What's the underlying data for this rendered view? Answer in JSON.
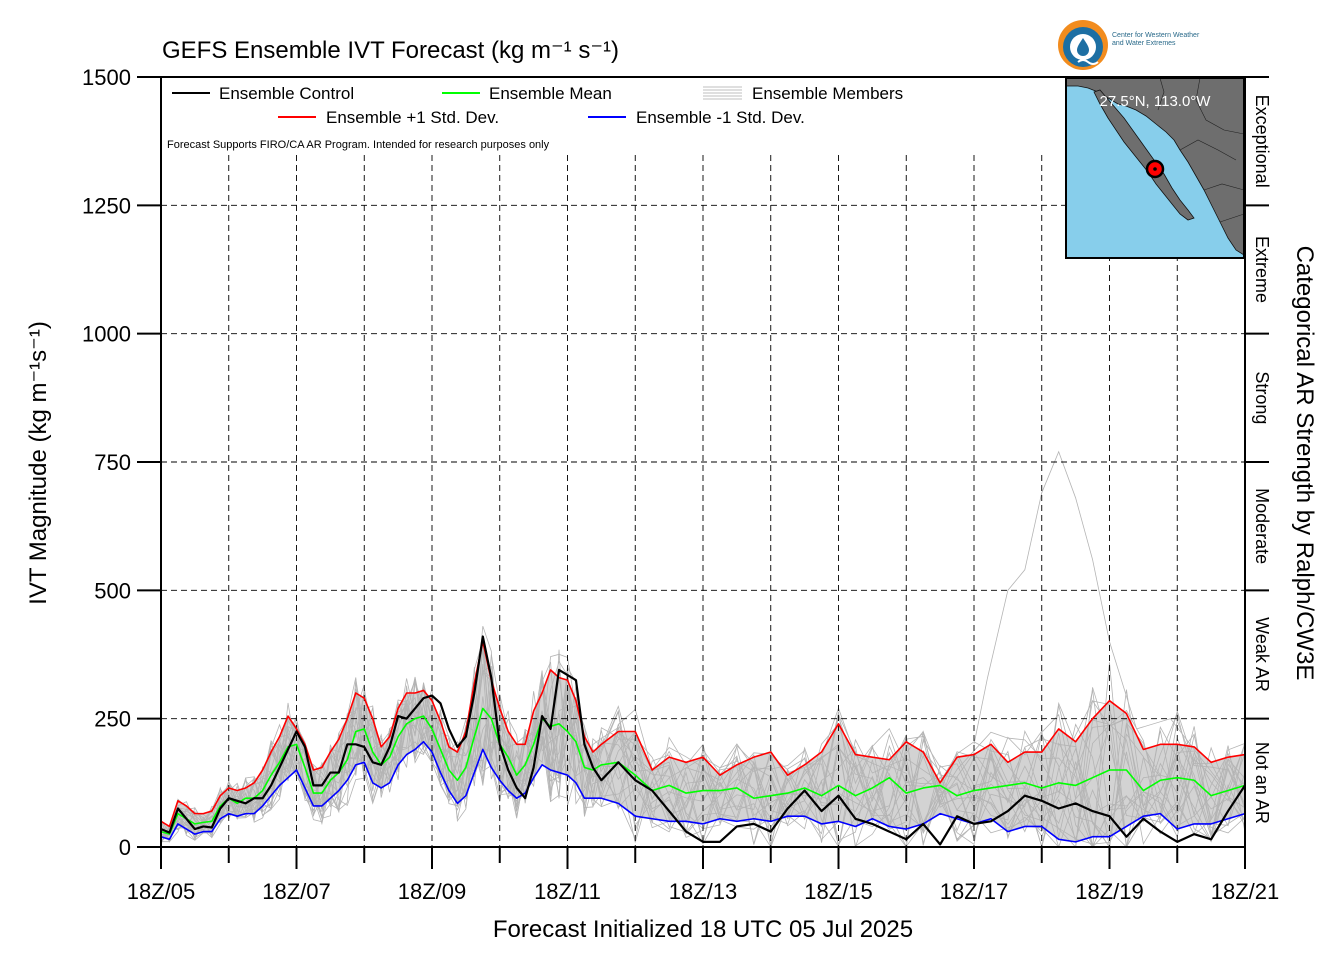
{
  "chart_data": {
    "type": "line",
    "title": "GEFS Ensemble IVT Forecast (kg m⁻¹ s⁻¹)",
    "xlabel": "Forecast Initialized 18 UTC 05 Jul 2025",
    "ylabel": "IVT Magnitude (kg m⁻¹s⁻¹)",
    "right_label": "Categorical AR Strength by Ralph/CW3E",
    "note": "Forecast Supports FIRO/CA AR Program. Intended for research purposes only",
    "ylim": [
      0,
      1500
    ],
    "xlim": [
      0,
      16
    ],
    "y_ticks": [
      0,
      250,
      500,
      750,
      1000,
      1250,
      1500
    ],
    "x_tick_labels": [
      "18Z/05",
      "18Z/07",
      "18Z/09",
      "18Z/11",
      "18Z/13",
      "18Z/15",
      "18Z/17",
      "18Z/19",
      "18Z/21"
    ],
    "grid": true,
    "categories_ar": [
      {
        "label": "Not an AR",
        "range": [
          0,
          250
        ]
      },
      {
        "label": "Weak AR",
        "range": [
          250,
          500
        ]
      },
      {
        "label": "Moderate",
        "range": [
          500,
          750
        ]
      },
      {
        "label": "Strong",
        "range": [
          750,
          1000
        ]
      },
      {
        "label": "Extreme",
        "range": [
          1000,
          1250
        ]
      },
      {
        "label": "Exceptional",
        "range": [
          1250,
          1500
        ]
      }
    ],
    "legend": {
      "placement": "top-left",
      "entries": [
        {
          "label": "Ensemble Control",
          "color": "#000000"
        },
        {
          "label": "Ensemble Mean",
          "color": "#00ff00"
        },
        {
          "label": "Ensemble Members",
          "color": "#aaaaaa"
        },
        {
          "label": "Ensemble +1 Std. Dev.",
          "color": "#ff0000"
        },
        {
          "label": "Ensemble -1 Std. Dev.",
          "color": "#0000ff"
        }
      ]
    },
    "inset_map": {
      "location_label": "27.5°N, 113.0°W",
      "ocean_color": "#87ceeb",
      "land_color": "#6e6e6e"
    },
    "series": [
      {
        "name": "Ensemble Control",
        "color": "#000000",
        "x": [
          0,
          0.125,
          0.25,
          0.375,
          0.5,
          0.625,
          0.75,
          0.875,
          1,
          1.125,
          1.25,
          1.375,
          1.5,
          1.625,
          1.75,
          1.875,
          2,
          2.125,
          2.25,
          2.375,
          2.5,
          2.625,
          2.75,
          2.875,
          3,
          3.125,
          3.25,
          3.375,
          3.5,
          3.625,
          3.75,
          3.875,
          4,
          4.125,
          4.25,
          4.375,
          4.5,
          4.625,
          4.75,
          4.875,
          5,
          5.125,
          5.25,
          5.375,
          5.5,
          5.625,
          5.75,
          5.875,
          6,
          6.125,
          6.25,
          6.375,
          6.5,
          6.75,
          7,
          7.25,
          7.5,
          7.75,
          8,
          8.25,
          8.5,
          8.75,
          9,
          9.25,
          9.5,
          9.75,
          10,
          10.25,
          10.5,
          10.75,
          11,
          11.25,
          11.5,
          11.75,
          12,
          12.25,
          12.5,
          12.75,
          13,
          13.25,
          13.5,
          13.75,
          14,
          14.25,
          14.5,
          14.75,
          15,
          15.25,
          15.5,
          15.75,
          16
        ],
        "y": [
          35,
          28,
          75,
          55,
          35,
          40,
          38,
          75,
          95,
          90,
          85,
          95,
          95,
          120,
          155,
          190,
          225,
          195,
          120,
          120,
          145,
          145,
          200,
          200,
          195,
          165,
          160,
          195,
          255,
          250,
          270,
          290,
          295,
          280,
          230,
          195,
          215,
          300,
          410,
          330,
          200,
          150,
          115,
          95,
          155,
          255,
          230,
          345,
          335,
          325,
          200,
          155,
          130,
          165,
          130,
          110,
          70,
          30,
          10,
          10,
          40,
          45,
          30,
          75,
          110,
          70,
          100,
          55,
          45,
          30,
          15,
          45,
          5,
          60,
          45,
          50,
          70,
          100,
          90,
          75,
          85,
          70,
          60,
          20,
          55,
          30,
          10,
          25,
          15,
          70,
          120
        ]
      },
      {
        "name": "Ensemble Mean",
        "color": "#00ff00",
        "x": [
          0,
          0.125,
          0.25,
          0.375,
          0.5,
          0.625,
          0.75,
          0.875,
          1,
          1.125,
          1.25,
          1.375,
          1.5,
          1.625,
          1.75,
          1.875,
          2,
          2.125,
          2.25,
          2.375,
          2.5,
          2.625,
          2.75,
          2.875,
          3,
          3.125,
          3.25,
          3.375,
          3.5,
          3.625,
          3.75,
          3.875,
          4,
          4.125,
          4.25,
          4.375,
          4.5,
          4.625,
          4.75,
          4.875,
          5,
          5.125,
          5.25,
          5.375,
          5.5,
          5.625,
          5.75,
          5.875,
          6,
          6.125,
          6.25,
          6.375,
          6.5,
          6.75,
          7,
          7.25,
          7.5,
          7.75,
          8,
          8.25,
          8.5,
          8.75,
          9,
          9.25,
          9.5,
          9.75,
          10,
          10.25,
          10.5,
          10.75,
          11,
          11.25,
          11.5,
          11.75,
          12,
          12.25,
          12.5,
          12.75,
          13,
          13.25,
          13.5,
          13.75,
          14,
          14.25,
          14.5,
          14.75,
          15,
          15.25,
          15.5,
          15.75,
          16
        ],
        "y": [
          30,
          25,
          65,
          55,
          45,
          48,
          50,
          80,
          95,
          85,
          95,
          95,
          110,
          140,
          165,
          195,
          200,
          155,
          105,
          105,
          130,
          145,
          170,
          225,
          230,
          185,
          160,
          175,
          215,
          240,
          250,
          255,
          230,
          190,
          150,
          130,
          155,
          215,
          270,
          250,
          200,
          175,
          140,
          160,
          200,
          250,
          235,
          240,
          225,
          205,
          155,
          150,
          160,
          165,
          140,
          110,
          120,
          105,
          110,
          110,
          115,
          95,
          100,
          105,
          115,
          100,
          120,
          100,
          115,
          135,
          105,
          115,
          120,
          100,
          110,
          115,
          120,
          125,
          115,
          125,
          120,
          135,
          150,
          150,
          110,
          130,
          135,
          130,
          100,
          110,
          120
        ]
      },
      {
        "name": "Ensemble +1 Std. Dev.",
        "color": "#ff0000",
        "x": [
          0,
          0.125,
          0.25,
          0.375,
          0.5,
          0.625,
          0.75,
          0.875,
          1,
          1.125,
          1.25,
          1.375,
          1.5,
          1.625,
          1.75,
          1.875,
          2,
          2.125,
          2.25,
          2.375,
          2.5,
          2.625,
          2.75,
          2.875,
          3,
          3.125,
          3.25,
          3.375,
          3.5,
          3.625,
          3.75,
          3.875,
          4,
          4.125,
          4.25,
          4.375,
          4.5,
          4.625,
          4.75,
          4.875,
          5,
          5.125,
          5.25,
          5.375,
          5.5,
          5.625,
          5.75,
          5.875,
          6,
          6.125,
          6.25,
          6.375,
          6.5,
          6.75,
          7,
          7.25,
          7.5,
          7.75,
          8,
          8.25,
          8.5,
          8.75,
          9,
          9.25,
          9.5,
          9.75,
          10,
          10.25,
          10.5,
          10.75,
          11,
          11.25,
          11.5,
          11.75,
          12,
          12.25,
          12.5,
          12.75,
          13,
          13.25,
          13.5,
          13.75,
          14,
          14.25,
          14.5,
          14.75,
          15,
          15.25,
          15.5,
          15.75,
          16
        ],
        "y": [
          50,
          40,
          90,
          80,
          65,
          65,
          70,
          100,
          115,
          110,
          115,
          125,
          150,
          185,
          215,
          255,
          230,
          200,
          150,
          155,
          185,
          210,
          250,
          300,
          290,
          250,
          195,
          215,
          270,
          300,
          300,
          305,
          285,
          245,
          195,
          185,
          225,
          320,
          400,
          325,
          270,
          225,
          200,
          200,
          265,
          300,
          345,
          330,
          325,
          285,
          215,
          185,
          200,
          225,
          225,
          150,
          175,
          165,
          175,
          140,
          160,
          175,
          185,
          140,
          160,
          185,
          240,
          180,
          175,
          170,
          205,
          185,
          125,
          175,
          180,
          200,
          165,
          185,
          185,
          230,
          205,
          250,
          285,
          260,
          190,
          200,
          200,
          195,
          165,
          175,
          180
        ]
      },
      {
        "name": "Ensemble -1 Std. Dev.",
        "color": "#0000ff",
        "x": [
          0,
          0.125,
          0.25,
          0.375,
          0.5,
          0.625,
          0.75,
          0.875,
          1,
          1.125,
          1.25,
          1.375,
          1.5,
          1.625,
          1.75,
          1.875,
          2,
          2.125,
          2.25,
          2.375,
          2.5,
          2.625,
          2.75,
          2.875,
          3,
          3.125,
          3.25,
          3.375,
          3.5,
          3.625,
          3.75,
          3.875,
          4,
          4.125,
          4.25,
          4.375,
          4.5,
          4.625,
          4.75,
          4.875,
          5,
          5.125,
          5.25,
          5.375,
          5.5,
          5.625,
          5.75,
          5.875,
          6,
          6.125,
          6.25,
          6.375,
          6.5,
          6.75,
          7,
          7.25,
          7.5,
          7.75,
          8,
          8.25,
          8.5,
          8.75,
          9,
          9.25,
          9.5,
          9.75,
          10,
          10.25,
          10.5,
          10.75,
          11,
          11.25,
          11.5,
          11.75,
          12,
          12.25,
          12.5,
          12.75,
          13,
          13.25,
          13.5,
          13.75,
          14,
          14.25,
          14.5,
          14.75,
          15,
          15.25,
          15.5,
          15.75,
          16
        ],
        "y": [
          20,
          15,
          45,
          35,
          25,
          30,
          30,
          55,
          65,
          60,
          65,
          65,
          80,
          100,
          120,
          135,
          150,
          115,
          80,
          80,
          95,
          110,
          130,
          160,
          165,
          125,
          115,
          125,
          160,
          180,
          190,
          205,
          185,
          145,
          110,
          85,
          100,
          145,
          190,
          155,
          130,
          110,
          95,
          105,
          135,
          160,
          150,
          145,
          140,
          125,
          95,
          95,
          95,
          85,
          60,
          55,
          50,
          50,
          45,
          55,
          50,
          55,
          50,
          60,
          60,
          45,
          50,
          40,
          55,
          40,
          35,
          45,
          65,
          55,
          45,
          55,
          30,
          40,
          40,
          15,
          10,
          20,
          20,
          40,
          60,
          65,
          35,
          45,
          45,
          55,
          65
        ]
      }
    ]
  }
}
